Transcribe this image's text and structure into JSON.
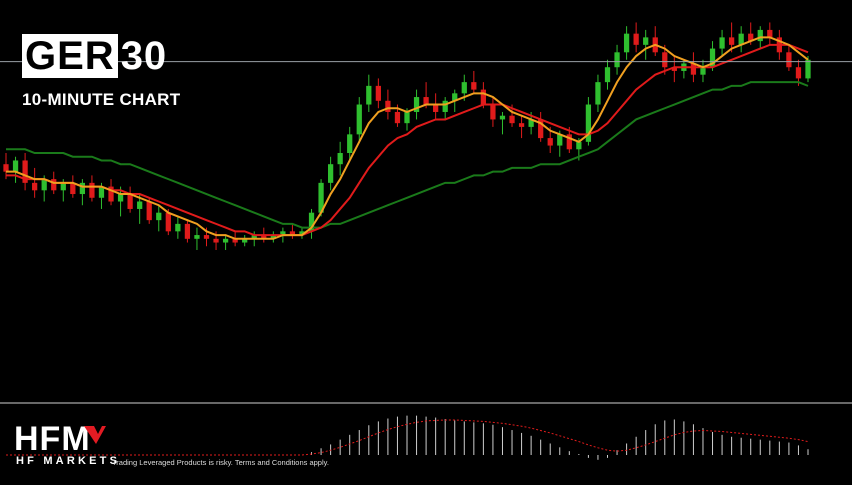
{
  "header": {
    "ticker_boxed": "GER",
    "ticker_rest": "30",
    "subtitle": "10-MINUTE CHART"
  },
  "footer": {
    "brand": "HFM",
    "brand_sub": "HF MARKETS",
    "disclaimer": "Trading Leveraged Products is risky. Terms and Conditions apply."
  },
  "colors": {
    "background": "#000000",
    "bull": "#2fbf2f",
    "bear": "#e01b1b",
    "ma_fast": "#f0a020",
    "ma_mid": "#e01b1b",
    "ma_slow": "#1a7a1a",
    "price_line": "#9aa0a6",
    "osc_bar": "#cfcfcf",
    "osc_signal": "#e01b1b",
    "brand_accent": "#e21b23"
  },
  "chart_data": {
    "type": "candlestick",
    "title": "",
    "grid": false,
    "y_range": [
      0,
      100
    ],
    "current_price_level": 87.5,
    "candles": [
      [
        60,
        63,
        56,
        58
      ],
      [
        58,
        62,
        55,
        61
      ],
      [
        61,
        63,
        53,
        55
      ],
      [
        55,
        59,
        51,
        53
      ],
      [
        53,
        57,
        50,
        56
      ],
      [
        56,
        58,
        52,
        53
      ],
      [
        53,
        56,
        50,
        55
      ],
      [
        55,
        57,
        51,
        52
      ],
      [
        52,
        56,
        49,
        55
      ],
      [
        55,
        57,
        50,
        51
      ],
      [
        51,
        55,
        48,
        54
      ],
      [
        54,
        56,
        49,
        50
      ],
      [
        50,
        54,
        46,
        52
      ],
      [
        52,
        54,
        47,
        48
      ],
      [
        48,
        52,
        44,
        50
      ],
      [
        50,
        51,
        44,
        45
      ],
      [
        45,
        49,
        42,
        47
      ],
      [
        47,
        48,
        41,
        42
      ],
      [
        42,
        46,
        40,
        44
      ],
      [
        44,
        45,
        39,
        40
      ],
      [
        40,
        43,
        37,
        41
      ],
      [
        41,
        43,
        38,
        40
      ],
      [
        40,
        42,
        37,
        39
      ],
      [
        39,
        41,
        37,
        40
      ],
      [
        40,
        42,
        38,
        39
      ],
      [
        39,
        41,
        38,
        40
      ],
      [
        40,
        42,
        38,
        41
      ],
      [
        41,
        43,
        39,
        40
      ],
      [
        40,
        42,
        39,
        41
      ],
      [
        41,
        43,
        39,
        42
      ],
      [
        42,
        44,
        40,
        41
      ],
      [
        41,
        43,
        40,
        42
      ],
      [
        42,
        48,
        40,
        47
      ],
      [
        47,
        56,
        46,
        55
      ],
      [
        55,
        62,
        53,
        60
      ],
      [
        60,
        66,
        57,
        63
      ],
      [
        63,
        70,
        61,
        68
      ],
      [
        68,
        78,
        66,
        76
      ],
      [
        76,
        84,
        74,
        81
      ],
      [
        81,
        83,
        75,
        77
      ],
      [
        77,
        80,
        72,
        74
      ],
      [
        74,
        76,
        70,
        71
      ],
      [
        71,
        75,
        69,
        74
      ],
      [
        74,
        80,
        72,
        78
      ],
      [
        78,
        82,
        75,
        76
      ],
      [
        76,
        79,
        72,
        74
      ],
      [
        74,
        78,
        72,
        77
      ],
      [
        77,
        80,
        74,
        79
      ],
      [
        79,
        84,
        77,
        82
      ],
      [
        82,
        85,
        79,
        80
      ],
      [
        80,
        82,
        75,
        76
      ],
      [
        76,
        78,
        70,
        72
      ],
      [
        72,
        74,
        68,
        73
      ],
      [
        73,
        76,
        70,
        71
      ],
      [
        71,
        73,
        67,
        70
      ],
      [
        70,
        74,
        68,
        72
      ],
      [
        72,
        74,
        66,
        67
      ],
      [
        67,
        70,
        63,
        65
      ],
      [
        65,
        69,
        62,
        68
      ],
      [
        68,
        70,
        63,
        64
      ],
      [
        64,
        67,
        61,
        66
      ],
      [
        66,
        78,
        65,
        76
      ],
      [
        76,
        84,
        74,
        82
      ],
      [
        82,
        88,
        80,
        86
      ],
      [
        86,
        92,
        84,
        90
      ],
      [
        90,
        97,
        88,
        95
      ],
      [
        95,
        98,
        90,
        92
      ],
      [
        92,
        96,
        88,
        94
      ],
      [
        94,
        97,
        89,
        90
      ],
      [
        90,
        92,
        84,
        86
      ],
      [
        86,
        89,
        82,
        85
      ],
      [
        85,
        88,
        83,
        87
      ],
      [
        87,
        90,
        82,
        84
      ],
      [
        84,
        88,
        82,
        86
      ],
      [
        86,
        93,
        85,
        91
      ],
      [
        91,
        96,
        89,
        94
      ],
      [
        94,
        98,
        90,
        92
      ],
      [
        92,
        97,
        90,
        95
      ],
      [
        95,
        98,
        92,
        93
      ],
      [
        93,
        97,
        91,
        96
      ],
      [
        96,
        98,
        92,
        94
      ],
      [
        94,
        96,
        88,
        90
      ],
      [
        90,
        92,
        85,
        86
      ],
      [
        86,
        88,
        81,
        83
      ],
      [
        83,
        89,
        82,
        88
      ]
    ],
    "ma_fast": [
      58,
      58,
      57,
      56,
      56,
      55,
      55,
      55,
      54,
      54,
      54,
      53,
      52,
      52,
      51,
      50,
      49,
      47,
      46,
      45,
      44,
      42,
      41,
      41,
      40,
      40,
      40,
      40,
      40,
      41,
      41,
      41,
      43,
      47,
      52,
      56,
      61,
      66,
      71,
      74,
      75,
      75,
      74,
      75,
      76,
      76,
      76,
      77,
      78,
      79,
      79,
      78,
      76,
      74,
      73,
      72,
      71,
      69,
      68,
      67,
      66,
      68,
      72,
      77,
      82,
      86,
      89,
      91,
      92,
      91,
      89,
      88,
      87,
      86,
      87,
      89,
      91,
      92,
      93,
      94,
      94,
      93,
      92,
      90,
      88
    ],
    "ma_mid": [
      57,
      57,
      56,
      56,
      56,
      55,
      55,
      55,
      54,
      54,
      54,
      53,
      53,
      52,
      52,
      51,
      50,
      49,
      48,
      47,
      46,
      45,
      44,
      43,
      42,
      42,
      41,
      41,
      41,
      41,
      41,
      41,
      42,
      43,
      45,
      48,
      51,
      55,
      59,
      62,
      65,
      67,
      68,
      70,
      71,
      72,
      72,
      73,
      74,
      75,
      76,
      76,
      76,
      75,
      74,
      73,
      72,
      71,
      70,
      69,
      68,
      68,
      69,
      71,
      74,
      77,
      80,
      82,
      84,
      85,
      86,
      86,
      86,
      86,
      86,
      87,
      88,
      89,
      90,
      91,
      92,
      92,
      92,
      91,
      90
    ],
    "ma_slow": [
      64,
      64,
      64,
      63,
      63,
      63,
      63,
      62,
      62,
      62,
      61,
      61,
      60,
      60,
      59,
      58,
      57,
      56,
      55,
      54,
      53,
      52,
      51,
      50,
      49,
      48,
      47,
      46,
      45,
      44,
      44,
      43,
      43,
      43,
      44,
      44,
      45,
      46,
      47,
      48,
      49,
      50,
      51,
      52,
      53,
      54,
      55,
      55,
      56,
      57,
      57,
      58,
      58,
      59,
      59,
      59,
      60,
      60,
      60,
      61,
      62,
      63,
      64,
      66,
      68,
      70,
      72,
      73,
      74,
      75,
      76,
      77,
      78,
      79,
      80,
      80,
      81,
      81,
      82,
      82,
      82,
      82,
      82,
      82,
      81
    ],
    "oscillator": {
      "bars": [
        0,
        0,
        0,
        0,
        0,
        0,
        0,
        0,
        0,
        0,
        0,
        0,
        0,
        0,
        0,
        0,
        0,
        0,
        0,
        0,
        0,
        0,
        0,
        0,
        0,
        0,
        0,
        0,
        0,
        0,
        0,
        0,
        0.06,
        0.14,
        0.22,
        0.32,
        0.42,
        0.52,
        0.62,
        0.7,
        0.76,
        0.8,
        0.82,
        0.82,
        0.8,
        0.78,
        0.75,
        0.72,
        0.7,
        0.68,
        0.66,
        0.63,
        0.58,
        0.52,
        0.46,
        0.4,
        0.32,
        0.24,
        0.16,
        0.08,
        0.02,
        -0.06,
        -0.1,
        -0.06,
        0.1,
        0.24,
        0.38,
        0.52,
        0.64,
        0.72,
        0.74,
        0.7,
        0.64,
        0.56,
        0.48,
        0.42,
        0.38,
        0.36,
        0.34,
        0.32,
        0.3,
        0.28,
        0.26,
        0.2,
        0.12
      ],
      "signal": [
        0,
        0,
        0,
        0,
        0,
        0,
        0,
        0,
        0,
        0,
        0,
        0,
        0,
        0,
        0,
        0,
        0,
        0,
        0,
        0,
        0,
        0,
        0,
        0,
        0,
        0,
        0,
        0,
        0,
        0,
        0,
        0,
        0.02,
        0.05,
        0.1,
        0.16,
        0.23,
        0.3,
        0.38,
        0.46,
        0.53,
        0.59,
        0.64,
        0.68,
        0.71,
        0.72,
        0.73,
        0.73,
        0.72,
        0.71,
        0.7,
        0.68,
        0.66,
        0.63,
        0.6,
        0.56,
        0.51,
        0.46,
        0.4,
        0.34,
        0.28,
        0.21,
        0.15,
        0.1,
        0.08,
        0.1,
        0.15,
        0.21,
        0.28,
        0.35,
        0.42,
        0.47,
        0.5,
        0.51,
        0.5,
        0.49,
        0.47,
        0.45,
        0.43,
        0.41,
        0.39,
        0.37,
        0.35,
        0.32,
        0.28
      ]
    }
  }
}
